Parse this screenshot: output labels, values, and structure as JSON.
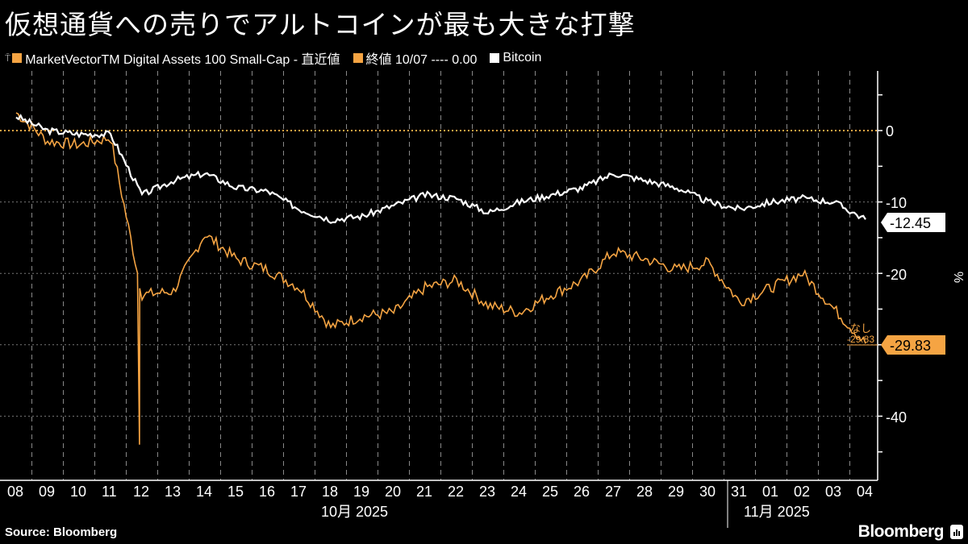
{
  "title": "仮想通貨への売りでアルトコインが最も大きな打撃",
  "legend": [
    {
      "label": "MarketVectorTM Digital Assets 100 Small-Cap - 直近値",
      "color": "#f5a443"
    },
    {
      "label": "終値 10/07 ---- 0.00",
      "color": "#f5a443"
    },
    {
      "label": "Bitcoin",
      "color": "#ffffff"
    }
  ],
  "y_unit": "%",
  "y_ticks": [
    "0",
    "-10",
    "-20",
    "-40"
  ],
  "x_ticks": [
    "08",
    "09",
    "10",
    "11",
    "12",
    "13",
    "14",
    "15",
    "16",
    "17",
    "18",
    "19",
    "20",
    "21",
    "22",
    "23",
    "24",
    "25",
    "26",
    "27",
    "28",
    "29",
    "30",
    "31",
    "01",
    "02",
    "03",
    "04"
  ],
  "months": [
    {
      "label": "10月 2025"
    },
    {
      "label": "11月 2025"
    }
  ],
  "last_values": {
    "bitcoin": "-12.45",
    "smallcap": "-29.83",
    "annotation_label": "なし",
    "annotation_value": "-29.83"
  },
  "source": "Source: Bloomberg",
  "brand": "Bloomberg",
  "chart_data": {
    "type": "line",
    "title": "仮想通貨への売りでアルトコインが最も大きな打撃",
    "xlabel": "",
    "ylabel": "%",
    "ylim": [
      -47,
      8
    ],
    "categories": [
      "10/08",
      "10/09",
      "10/10",
      "10/11",
      "10/12",
      "10/13",
      "10/14",
      "10/15",
      "10/16",
      "10/17",
      "10/18",
      "10/19",
      "10/20",
      "10/21",
      "10/22",
      "10/23",
      "10/24",
      "10/25",
      "10/26",
      "10/27",
      "10/28",
      "10/29",
      "10/30",
      "10/31",
      "11/01",
      "11/02",
      "11/03",
      "11/04"
    ],
    "series": [
      {
        "name": "MarketVectorTM Digital Assets 100 Small-Cap",
        "color": "#f5a443",
        "values": [
          2.5,
          -1.5,
          -2.0,
          -1.0,
          -23.0,
          -22.5,
          -14.5,
          -18.0,
          -19.5,
          -22.0,
          -27.5,
          -26.0,
          -25.5,
          -22.0,
          -21.0,
          -24.5,
          -25.5,
          -23.0,
          -21.0,
          -17.0,
          -18.0,
          -19.5,
          -18.5,
          -24.0,
          -22.0,
          -20.0,
          -25.0,
          -29.83
        ]
      },
      {
        "name": "Bitcoin",
        "color": "#ffffff",
        "values": [
          2.0,
          0.0,
          -0.5,
          -0.5,
          -9.0,
          -7.0,
          -6.0,
          -8.0,
          -8.5,
          -11.0,
          -12.5,
          -12.0,
          -10.5,
          -9.0,
          -9.5,
          -11.5,
          -10.0,
          -9.0,
          -8.0,
          -6.0,
          -7.0,
          -8.0,
          -10.0,
          -11.0,
          -10.0,
          -9.5,
          -10.0,
          -12.45
        ]
      }
    ],
    "reference_line": {
      "label": "終値 10/07",
      "value": 0.0
    },
    "annotations": [
      {
        "label": "なし",
        "value": -29.83
      }
    ],
    "grid": true,
    "legend_position": "top"
  }
}
